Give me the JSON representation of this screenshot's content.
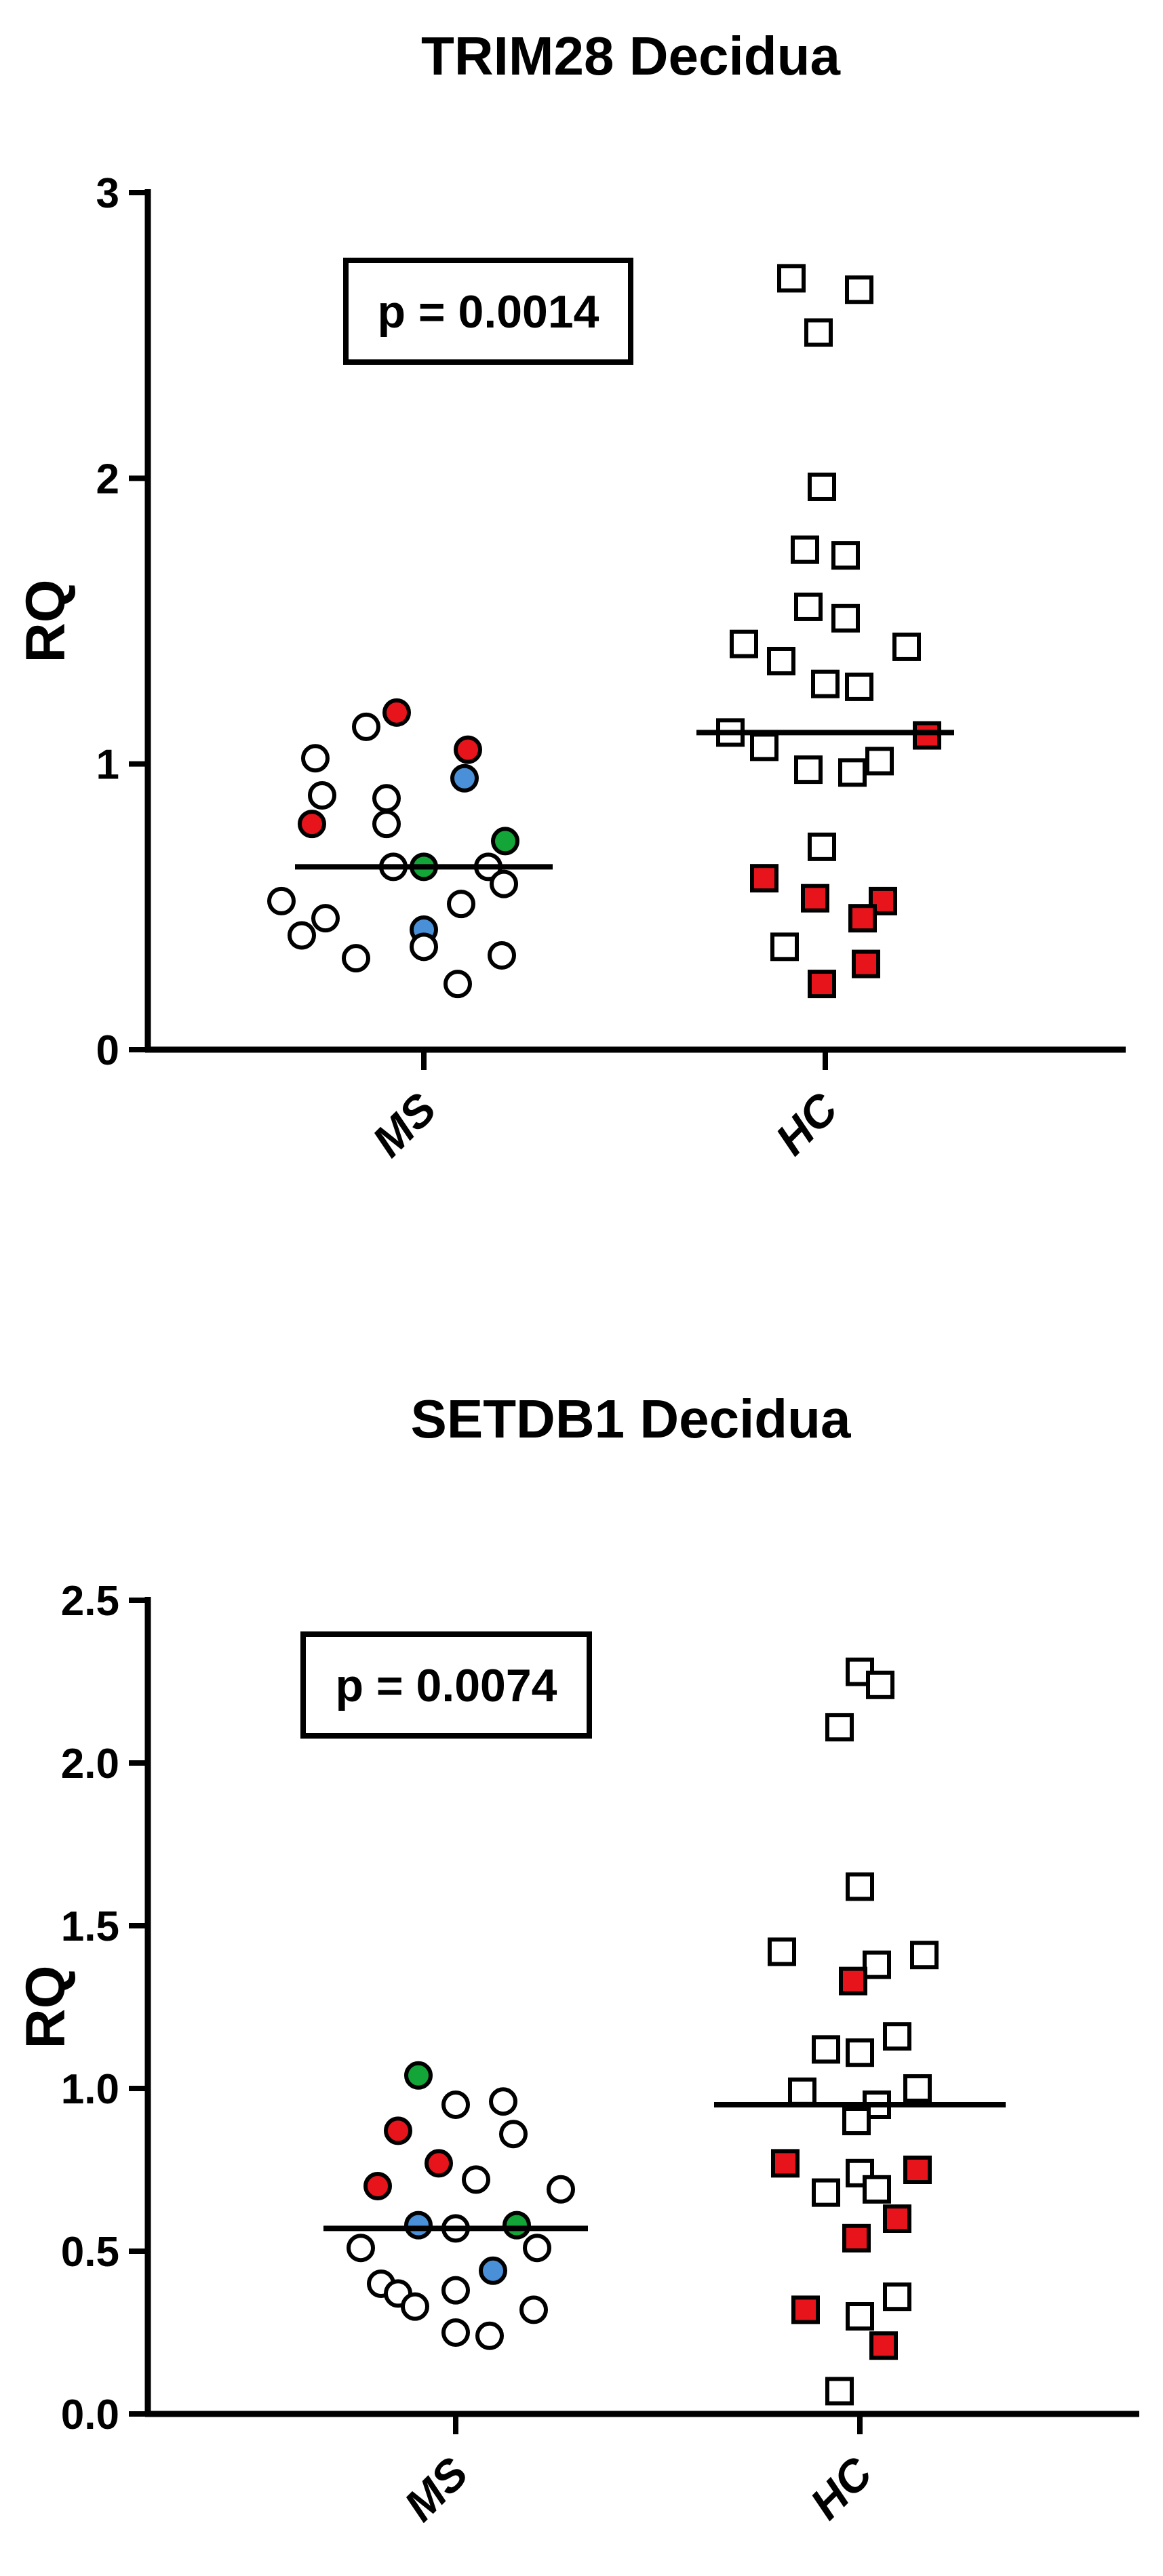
{
  "chart_data": [
    {
      "type": "scatter",
      "title": "TRIM28 Decidua",
      "ylabel": "RQ",
      "ylim": [
        0,
        3
      ],
      "yticks": [
        "0",
        "1",
        "2",
        "3"
      ],
      "categories": [
        "MS",
        "HC"
      ],
      "annotation": "p = 0.0014",
      "medians": {
        "MS": 0.64,
        "HC": 1.11
      },
      "colors": {
        "red": "#e8141c",
        "green": "#13a538",
        "blue": "#4a90d9",
        "open": "#ffffff"
      },
      "points": {
        "MS": [
          {
            "v": 1.18,
            "c": "red"
          },
          {
            "v": 1.13,
            "c": "open"
          },
          {
            "v": 1.05,
            "c": "red"
          },
          {
            "v": 1.02,
            "c": "open"
          },
          {
            "v": 0.95,
            "c": "blue"
          },
          {
            "v": 0.89,
            "c": "open"
          },
          {
            "v": 0.88,
            "c": "open"
          },
          {
            "v": 0.79,
            "c": "red"
          },
          {
            "v": 0.79,
            "c": "open"
          },
          {
            "v": 0.73,
            "c": "green"
          },
          {
            "v": 0.64,
            "c": "open"
          },
          {
            "v": 0.64,
            "c": "green"
          },
          {
            "v": 0.64,
            "c": "open"
          },
          {
            "v": 0.58,
            "c": "open"
          },
          {
            "v": 0.52,
            "c": "open"
          },
          {
            "v": 0.51,
            "c": "open"
          },
          {
            "v": 0.46,
            "c": "open"
          },
          {
            "v": 0.42,
            "c": "blue"
          },
          {
            "v": 0.4,
            "c": "open"
          },
          {
            "v": 0.36,
            "c": "open"
          },
          {
            "v": 0.33,
            "c": "open"
          },
          {
            "v": 0.32,
            "c": "open"
          },
          {
            "v": 0.23,
            "c": "open"
          }
        ],
        "HC": [
          {
            "v": 2.7,
            "c": "open"
          },
          {
            "v": 2.66,
            "c": "open"
          },
          {
            "v": 2.51,
            "c": "open"
          },
          {
            "v": 1.97,
            "c": "open"
          },
          {
            "v": 1.75,
            "c": "open"
          },
          {
            "v": 1.73,
            "c": "open"
          },
          {
            "v": 1.55,
            "c": "open"
          },
          {
            "v": 1.51,
            "c": "open"
          },
          {
            "v": 1.42,
            "c": "open"
          },
          {
            "v": 1.41,
            "c": "open"
          },
          {
            "v": 1.36,
            "c": "open"
          },
          {
            "v": 1.28,
            "c": "open"
          },
          {
            "v": 1.27,
            "c": "open"
          },
          {
            "v": 1.11,
            "c": "open"
          },
          {
            "v": 1.1,
            "c": "red"
          },
          {
            "v": 1.06,
            "c": "open"
          },
          {
            "v": 1.01,
            "c": "open"
          },
          {
            "v": 0.98,
            "c": "open"
          },
          {
            "v": 0.97,
            "c": "open"
          },
          {
            "v": 0.71,
            "c": "open"
          },
          {
            "v": 0.6,
            "c": "red"
          },
          {
            "v": 0.53,
            "c": "red"
          },
          {
            "v": 0.52,
            "c": "red"
          },
          {
            "v": 0.46,
            "c": "red"
          },
          {
            "v": 0.36,
            "c": "open"
          },
          {
            "v": 0.3,
            "c": "red"
          },
          {
            "v": 0.23,
            "c": "red"
          }
        ]
      }
    },
    {
      "type": "scatter",
      "title": "SETDB1 Decidua",
      "ylabel": "RQ",
      "ylim": [
        0,
        2.5
      ],
      "yticks": [
        "0.0",
        "0.5",
        "1.0",
        "1.5",
        "2.0",
        "2.5"
      ],
      "categories": [
        "MS",
        "HC"
      ],
      "annotation": "p = 0.0074",
      "medians": {
        "MS": 0.57,
        "HC": 0.95
      },
      "colors": {
        "red": "#e8141c",
        "green": "#13a538",
        "blue": "#4a90d9",
        "open": "#ffffff"
      },
      "points": {
        "MS": [
          {
            "v": 1.04,
            "c": "green"
          },
          {
            "v": 0.96,
            "c": "open"
          },
          {
            "v": 0.95,
            "c": "open"
          },
          {
            "v": 0.87,
            "c": "red"
          },
          {
            "v": 0.86,
            "c": "open"
          },
          {
            "v": 0.77,
            "c": "red"
          },
          {
            "v": 0.72,
            "c": "open"
          },
          {
            "v": 0.7,
            "c": "red"
          },
          {
            "v": 0.69,
            "c": "open"
          },
          {
            "v": 0.58,
            "c": "blue"
          },
          {
            "v": 0.58,
            "c": "green"
          },
          {
            "v": 0.57,
            "c": "open"
          },
          {
            "v": 0.51,
            "c": "open"
          },
          {
            "v": 0.51,
            "c": "open"
          },
          {
            "v": 0.44,
            "c": "blue"
          },
          {
            "v": 0.4,
            "c": "open"
          },
          {
            "v": 0.38,
            "c": "open"
          },
          {
            "v": 0.37,
            "c": "open"
          },
          {
            "v": 0.33,
            "c": "open"
          },
          {
            "v": 0.32,
            "c": "open"
          },
          {
            "v": 0.25,
            "c": "open"
          },
          {
            "v": 0.24,
            "c": "open"
          }
        ],
        "HC": [
          {
            "v": 2.28,
            "c": "open"
          },
          {
            "v": 2.24,
            "c": "open"
          },
          {
            "v": 2.11,
            "c": "open"
          },
          {
            "v": 1.62,
            "c": "open"
          },
          {
            "v": 1.42,
            "c": "open"
          },
          {
            "v": 1.41,
            "c": "open"
          },
          {
            "v": 1.38,
            "c": "open"
          },
          {
            "v": 1.33,
            "c": "red"
          },
          {
            "v": 1.16,
            "c": "open"
          },
          {
            "v": 1.12,
            "c": "open"
          },
          {
            "v": 1.11,
            "c": "open"
          },
          {
            "v": 1.0,
            "c": "open"
          },
          {
            "v": 0.99,
            "c": "open"
          },
          {
            "v": 0.95,
            "c": "open"
          },
          {
            "v": 0.9,
            "c": "open"
          },
          {
            "v": 0.77,
            "c": "red"
          },
          {
            "v": 0.75,
            "c": "red"
          },
          {
            "v": 0.74,
            "c": "open"
          },
          {
            "v": 0.69,
            "c": "open"
          },
          {
            "v": 0.68,
            "c": "open"
          },
          {
            "v": 0.6,
            "c": "red"
          },
          {
            "v": 0.54,
            "c": "red"
          },
          {
            "v": 0.36,
            "c": "open"
          },
          {
            "v": 0.32,
            "c": "red"
          },
          {
            "v": 0.3,
            "c": "open"
          },
          {
            "v": 0.21,
            "c": "red"
          },
          {
            "v": 0.07,
            "c": "open"
          }
        ]
      }
    }
  ]
}
